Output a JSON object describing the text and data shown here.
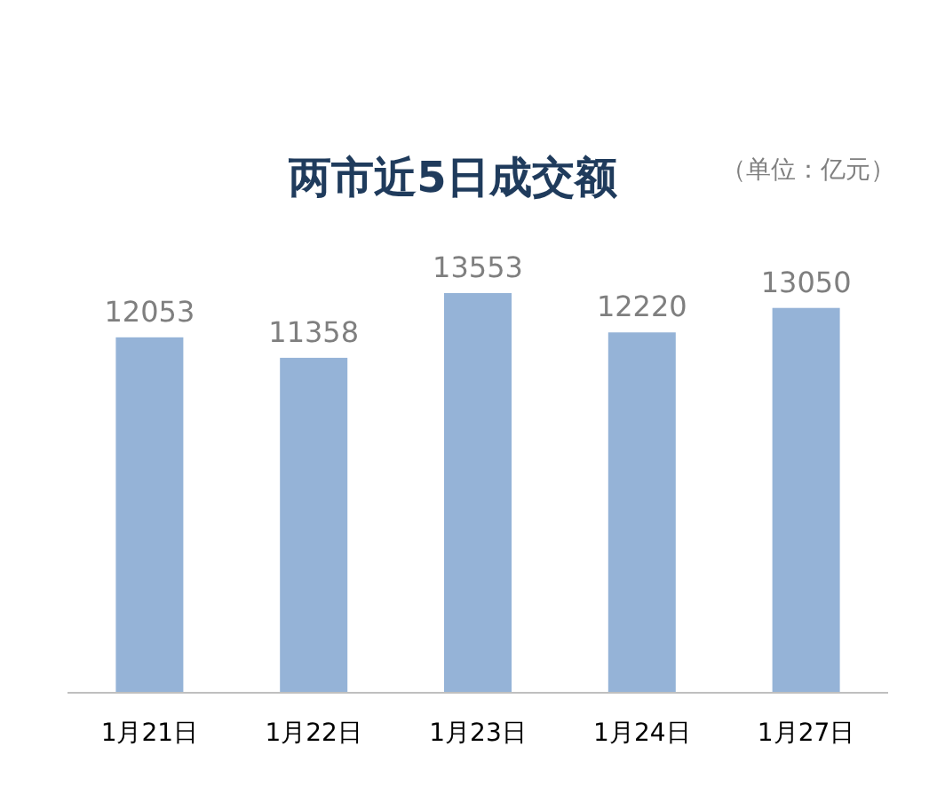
{
  "chart_data": {
    "type": "bar",
    "title": "两市近5日成交额",
    "annotations": [
      "（单位：亿元）"
    ],
    "categories": [
      "1月21日",
      "1月22日",
      "1月23日",
      "1月24日",
      "1月27日"
    ],
    "values": [
      12053,
      11358,
      13553,
      12220,
      13050
    ],
    "color": "#95b3d7",
    "data_labels": true
  }
}
